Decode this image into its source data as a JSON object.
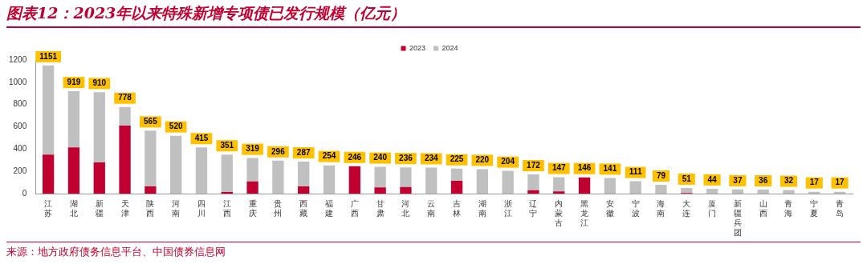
{
  "chart_data": {
    "type": "bar",
    "title": "图表12：2023年以来特殊新增专项债已发行规模（亿元）",
    "categories": [
      "江苏",
      "湖北",
      "新疆",
      "天津",
      "陕西",
      "河南",
      "四川",
      "江西",
      "重庆",
      "贵州",
      "西藏",
      "福建",
      "广西",
      "甘肃",
      "河北",
      "云南",
      "吉林",
      "湖南",
      "浙江",
      "辽宁",
      "内蒙古",
      "黑龙江",
      "安徽",
      "宁波",
      "海南",
      "大连",
      "厦门",
      "新疆兵团",
      "山西",
      "青海",
      "宁夏",
      "青岛"
    ],
    "series": [
      {
        "name": "2023",
        "color": "#c00030",
        "values": [
          350,
          415,
          280,
          610,
          65,
          0,
          0,
          15,
          110,
          0,
          65,
          0,
          246,
          55,
          60,
          0,
          115,
          0,
          0,
          30,
          20,
          146,
          0,
          0,
          0,
          5,
          0,
          0,
          0,
          0,
          0,
          0
        ]
      },
      {
        "name": "2024",
        "color": "#c0c0c0",
        "values": [
          801,
          504,
          630,
          168,
          500,
          520,
          415,
          336,
          209,
          296,
          222,
          254,
          0,
          185,
          176,
          234,
          110,
          220,
          204,
          142,
          127,
          0,
          141,
          111,
          79,
          46,
          44,
          37,
          36,
          32,
          17,
          17
        ]
      }
    ],
    "stacked": true,
    "totals": [
      "1151",
      "919",
      "910",
      "778",
      "565",
      "520",
      "415",
      "351",
      "319",
      "296",
      "287",
      "254",
      "246",
      "240",
      "236",
      "234",
      "225",
      "220",
      "204",
      "172",
      "147",
      "146",
      "141",
      "111",
      "79",
      "51",
      "44",
      "37",
      "36",
      "32",
      "17",
      "17"
    ],
    "ylim": [
      0,
      1200
    ],
    "yticks": [
      0,
      200,
      400,
      600,
      800,
      1000,
      1200
    ],
    "grid": false,
    "legend": "top",
    "annotations": [
      "来源：地方政府债务信息平台、中国债券信息网"
    ]
  }
}
